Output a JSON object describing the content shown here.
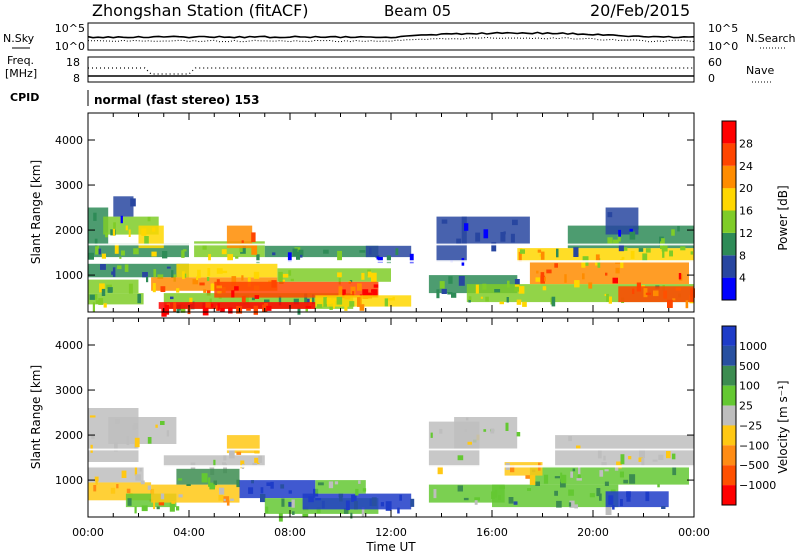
{
  "header": {
    "station": "Zhongshan Station (fitACF)",
    "beam": "Beam 05",
    "date": "20/Feb/2015"
  },
  "top_panels": {
    "noise": {
      "left_label": "N.Sky",
      "right_label": "N.Search",
      "left_ticks": [
        "10^5",
        "10^0"
      ],
      "right_ticks": [
        "10^5",
        "10^0"
      ]
    },
    "freq": {
      "left_label_line1": "Freq.",
      "left_label_line2": "[MHz]",
      "left_ticks": [
        "18",
        "8"
      ],
      "right_label": "Nave",
      "right_ticks": [
        "60",
        "0"
      ]
    },
    "cpid": {
      "label": "CPID",
      "text": "normal (fast stereo) 153"
    }
  },
  "colorbars": {
    "power": {
      "label": "Power [dB]",
      "ticks": [
        "4",
        "8",
        "12",
        "16",
        "20",
        "24",
        "28"
      ],
      "colors": [
        "#0000ff",
        "#2846a0",
        "#2e8b57",
        "#7fcc28",
        "#ffd700",
        "#ff8c00",
        "#ff4500",
        "#ff0000"
      ]
    },
    "velocity": {
      "label": "Velocity [m s⁻¹]",
      "ticks": [
        "1000",
        "500",
        "100",
        "25",
        "−25",
        "−100",
        "−500",
        "−1000"
      ],
      "colors": [
        "#1e3cc8",
        "#2850a0",
        "#3c8c50",
        "#64c832",
        "#bebebe",
        "#ffc814",
        "#ff8c14",
        "#ff5000",
        "#ff0000"
      ]
    }
  },
  "chart_data": [
    {
      "type": "heatmap",
      "title": "",
      "xlabel": "Time UT",
      "ylabel": "Slant Range [km]",
      "xticks": [
        "00:00",
        "04:00",
        "08:00",
        "12:00",
        "16:00",
        "20:00",
        "00:00"
      ],
      "yticks": [
        "1000",
        "2000",
        "3000",
        "4000"
      ],
      "xlim": [
        0,
        24
      ],
      "ylim": [
        180,
        4600
      ],
      "quantity": "Power [dB]",
      "clim": [
        0,
        30
      ],
      "blocks": [
        {
          "t0": 0.0,
          "t1": 2.2,
          "r0": 350,
          "r1": 600,
          "v": 14
        },
        {
          "t0": 0.0,
          "t1": 2.0,
          "r0": 600,
          "r1": 900,
          "v": 12
        },
        {
          "t0": 0.0,
          "t1": 4.0,
          "r0": 950,
          "r1": 1250,
          "v": 10
        },
        {
          "t0": 0.0,
          "t1": 4.0,
          "r0": 1400,
          "r1": 1700,
          "v": 11
        },
        {
          "t0": 0.0,
          "t1": 0.8,
          "r0": 1700,
          "r1": 2500,
          "v": 8
        },
        {
          "t0": 0.6,
          "t1": 2.8,
          "r0": 1900,
          "r1": 2300,
          "v": 12
        },
        {
          "t0": 1.0,
          "t1": 1.8,
          "r0": 2300,
          "r1": 2750,
          "v": 7
        },
        {
          "t0": 2.0,
          "t1": 3.0,
          "r0": 1600,
          "r1": 2100,
          "v": 18
        },
        {
          "t0": 2.5,
          "t1": 7.5,
          "r0": 650,
          "r1": 950,
          "v": 20
        },
        {
          "t0": 3.5,
          "t1": 7.5,
          "r0": 950,
          "r1": 1250,
          "v": 18
        },
        {
          "t0": 4.2,
          "t1": 7.0,
          "r0": 1400,
          "r1": 1750,
          "v": 13
        },
        {
          "t0": 5.5,
          "t1": 6.5,
          "r0": 1600,
          "r1": 2100,
          "v": 22
        },
        {
          "t0": 7.0,
          "t1": 11.5,
          "r0": 1400,
          "r1": 1650,
          "v": 8
        },
        {
          "t0": 7.5,
          "t1": 12.0,
          "r0": 850,
          "r1": 1150,
          "v": 14
        },
        {
          "t0": 3.0,
          "t1": 10.5,
          "r0": 250,
          "r1": 600,
          "v": 12
        },
        {
          "t0": 2.8,
          "t1": 9.0,
          "r0": 250,
          "r1": 400,
          "v": 28
        },
        {
          "t0": 5.0,
          "t1": 11.5,
          "r0": 500,
          "r1": 850,
          "v": 25
        },
        {
          "t0": 9.0,
          "t1": 12.8,
          "r0": 300,
          "r1": 550,
          "v": 16
        },
        {
          "t0": 11.0,
          "t1": 12.8,
          "r0": 1400,
          "r1": 1650,
          "v": 6
        },
        {
          "t0": 13.8,
          "t1": 15.0,
          "r0": 1300,
          "r1": 2300,
          "v": 6
        },
        {
          "t0": 14.8,
          "t1": 17.5,
          "r0": 1700,
          "r1": 2300,
          "v": 5
        },
        {
          "t0": 13.5,
          "t1": 17.0,
          "r0": 600,
          "r1": 1000,
          "v": 8
        },
        {
          "t0": 15.0,
          "t1": 24.0,
          "r0": 400,
          "r1": 800,
          "v": 14
        },
        {
          "t0": 17.5,
          "t1": 23.8,
          "r0": 800,
          "r1": 1300,
          "v": 22
        },
        {
          "t0": 17.0,
          "t1": 24.0,
          "r0": 1300,
          "r1": 1600,
          "v": 15
        },
        {
          "t0": 19.0,
          "t1": 24.0,
          "r0": 1600,
          "r1": 2100,
          "v": 11
        },
        {
          "t0": 20.5,
          "t1": 21.8,
          "r0": 1900,
          "r1": 2500,
          "v": 7
        },
        {
          "t0": 21.0,
          "t1": 24.0,
          "r0": 400,
          "r1": 750,
          "v": 24
        }
      ]
    },
    {
      "type": "heatmap",
      "title": "",
      "xlabel": "Time UT",
      "ylabel": "Slant Range [km]",
      "xticks": [
        "00:00",
        "04:00",
        "08:00",
        "12:00",
        "16:00",
        "20:00",
        "00:00"
      ],
      "yticks": [
        "1000",
        "2000",
        "3000",
        "4000"
      ],
      "xlim": [
        0,
        24
      ],
      "ylim": [
        180,
        4600
      ],
      "quantity": "Velocity [m s^-1]",
      "clim": [
        -1000,
        1000
      ],
      "blocks": [
        {
          "t0": 0.0,
          "t1": 2.0,
          "r0": 1400,
          "r1": 2600,
          "v": 0
        },
        {
          "t0": 0.8,
          "t1": 3.5,
          "r0": 1800,
          "r1": 2400,
          "v": 0
        },
        {
          "t0": 0.0,
          "t1": 2.5,
          "r0": 550,
          "r1": 950,
          "v": -150
        },
        {
          "t0": 0.0,
          "t1": 2.2,
          "r0": 950,
          "r1": 1300,
          "v": -80
        },
        {
          "t0": 1.5,
          "t1": 3.5,
          "r0": 400,
          "r1": 700,
          "v": 300
        },
        {
          "t0": 2.5,
          "t1": 6.0,
          "r0": 500,
          "r1": 900,
          "v": -300
        },
        {
          "t0": 3.0,
          "t1": 7.0,
          "r0": 1300,
          "r1": 1550,
          "v": 0
        },
        {
          "t0": 3.5,
          "t1": 6.0,
          "r0": 900,
          "r1": 1250,
          "v": 400
        },
        {
          "t0": 5.5,
          "t1": 6.8,
          "r0": 1600,
          "r1": 2000,
          "v": -200
        },
        {
          "t0": 6.0,
          "t1": 9.0,
          "r0": 600,
          "r1": 1000,
          "v": 800
        },
        {
          "t0": 7.0,
          "t1": 11.5,
          "r0": 250,
          "r1": 600,
          "v": 300
        },
        {
          "t0": 8.5,
          "t1": 12.8,
          "r0": 350,
          "r1": 700,
          "v": 900
        },
        {
          "t0": 9.0,
          "t1": 11.0,
          "r0": 700,
          "r1": 1000,
          "v": 150
        },
        {
          "t0": 13.5,
          "t1": 15.5,
          "r0": 1300,
          "r1": 2300,
          "v": 0
        },
        {
          "t0": 14.5,
          "t1": 17.0,
          "r0": 1700,
          "r1": 2400,
          "v": 50
        },
        {
          "t0": 13.5,
          "t1": 16.5,
          "r0": 500,
          "r1": 900,
          "v": 200
        },
        {
          "t0": 16.0,
          "t1": 21.0,
          "r0": 400,
          "r1": 900,
          "v": 300
        },
        {
          "t0": 17.5,
          "t1": 23.8,
          "r0": 900,
          "r1": 1300,
          "v": 250
        },
        {
          "t0": 18.5,
          "t1": 24.0,
          "r0": 1300,
          "r1": 2000,
          "v": 0
        },
        {
          "t0": 20.5,
          "t1": 23.0,
          "r0": 400,
          "r1": 750,
          "v": 900
        },
        {
          "t0": 16.5,
          "t1": 18.0,
          "r0": 1100,
          "r1": 1400,
          "v": -200
        }
      ]
    }
  ]
}
